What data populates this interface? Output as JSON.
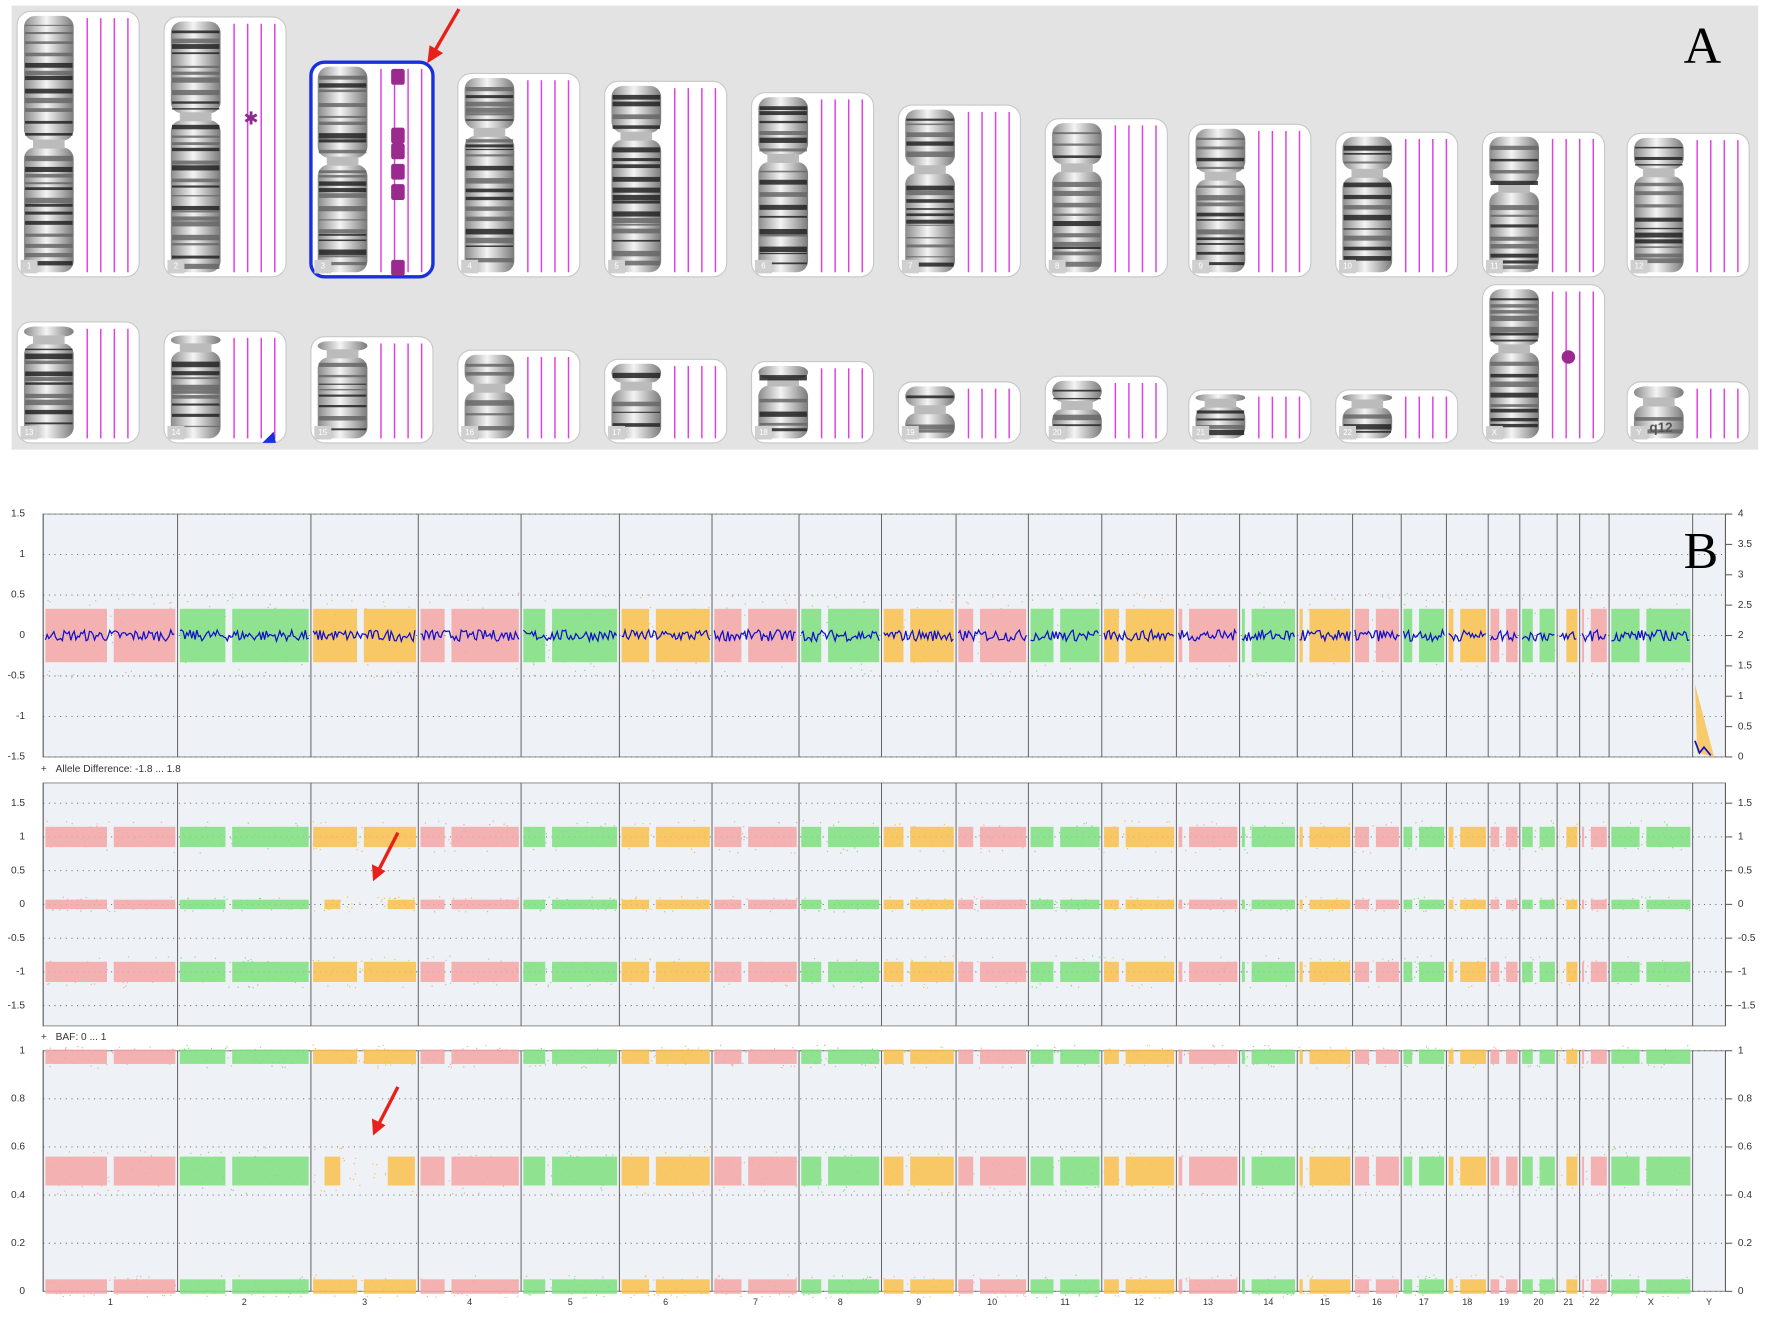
{
  "panel_a": {
    "label": "A",
    "band_label": "q12"
  },
  "chromosomes": [
    "1",
    "2",
    "3",
    "4",
    "5",
    "6",
    "7",
    "8",
    "9",
    "10",
    "11",
    "12",
    "13",
    "14",
    "15",
    "16",
    "17",
    "18",
    "19",
    "20",
    "21",
    "22",
    "X",
    "Y"
  ],
  "panel_b": {
    "label": "B",
    "plots": [
      {
        "ylim": [
          -1.5,
          1.5
        ],
        "yticks": [
          1.5,
          1,
          0.5,
          0,
          -0.5,
          -1,
          -1.5
        ],
        "y2lim": [
          0,
          4
        ],
        "y2ticks": [
          4,
          3.5,
          3,
          2.5,
          2,
          1.5,
          1,
          0.5,
          0
        ]
      },
      {
        "toggle": "+",
        "header": "Allele Difference: -1.8 ... 1.8",
        "ylim": [
          -1.8,
          1.8
        ],
        "yticks": [
          1.5,
          1,
          0.5,
          0,
          -0.5,
          -1,
          -1.5
        ],
        "y2lim": [
          -1.8,
          1.8
        ],
        "y2ticks": [
          1.5,
          1,
          0.5,
          0,
          -0.5,
          -1,
          -1.5
        ]
      },
      {
        "toggle": "+",
        "header": "BAF: 0 ... 1",
        "ylim": [
          0,
          1
        ],
        "yticks": [
          1,
          0.8,
          0.6,
          0.4,
          0.2,
          0
        ],
        "y2lim": [
          0,
          1
        ],
        "y2ticks": [
          1,
          0.8,
          0.6,
          0.4,
          0.2,
          0
        ]
      }
    ]
  }
}
